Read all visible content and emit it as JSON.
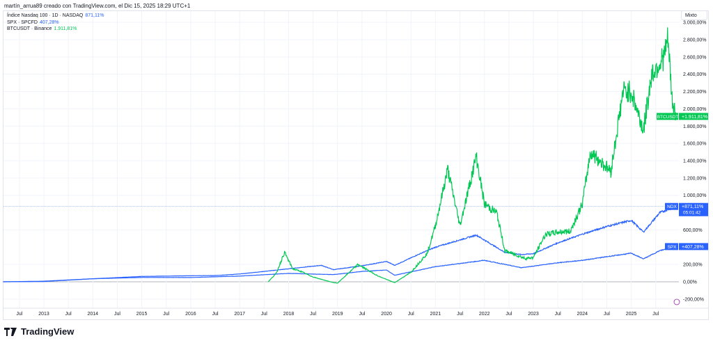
{
  "header": {
    "attribution": "martín_arrua89 creado con TradingView.com, el Dic 15, 2025 18:29 UTC+1"
  },
  "legend": [
    {
      "label": "Índice Nasdaq 100 · 1D · NASDAQ",
      "value": "871,11%",
      "color": "#2962ff"
    },
    {
      "label": "SPX · SPCFD",
      "value": "407,28%",
      "color": "#2962ff"
    },
    {
      "label": "BTCUSDT · Binance",
      "value": "1.911,81%",
      "color": "#00c853"
    }
  ],
  "scale_mode": "Mixto",
  "price_labels": {
    "btc": {
      "tag": "BTCUSDT",
      "value": "+1.911,81%"
    },
    "ndx": {
      "tag": "NDX",
      "value": "+871,11%",
      "countdown": "05:01:42"
    },
    "spx": {
      "tag": "SPX",
      "value": "+407,28%"
    }
  },
  "logo": "TradingView",
  "chart_data": {
    "type": "line",
    "y_unit": "%",
    "ylim": [
      -250,
      3050
    ],
    "y_ticks": [
      "-200,00%",
      "0,00%",
      "200,00%",
      "600,00%",
      "1.000,00%",
      "1.200,00%",
      "1.400,00%",
      "1.600,00%",
      "1.800,00%",
      "2.000,00%",
      "2.200,00%",
      "2.400,00%",
      "2.600,00%",
      "2.800,00%",
      "3.000,00%"
    ],
    "y_tick_values": [
      -200,
      0,
      200,
      600,
      1000,
      1200,
      1400,
      1600,
      1800,
      2000,
      2200,
      2400,
      2600,
      2800,
      3000
    ],
    "x_ticks": [
      "Jul",
      "2013",
      "Jul",
      "2014",
      "Jul",
      "2015",
      "Jul",
      "2016",
      "Jul",
      "2017",
      "Jul",
      "2018",
      "Jul",
      "2019",
      "Jul",
      "2020",
      "Jul",
      "2021",
      "Jul",
      "2022",
      "Jul",
      "2023",
      "Jul",
      "2024",
      "Jul",
      "2025",
      "Jul"
    ],
    "x_range": [
      "2012-03",
      "2025-12"
    ],
    "grid": true,
    "series": [
      {
        "name": "NDX",
        "color": "#2962ff",
        "points": [
          [
            "2012-03",
            0
          ],
          [
            "2013-01",
            3
          ],
          [
            "2014-01",
            35
          ],
          [
            "2015-01",
            62
          ],
          [
            "2016-01",
            70
          ],
          [
            "2016-07",
            72
          ],
          [
            "2017-01",
            90
          ],
          [
            "2018-01",
            150
          ],
          [
            "2018-09",
            190
          ],
          [
            "2018-12",
            140
          ],
          [
            "2019-07",
            185
          ],
          [
            "2020-01",
            235
          ],
          [
            "2020-03",
            190
          ],
          [
            "2020-09",
            320
          ],
          [
            "2021-01",
            400
          ],
          [
            "2021-11",
            540
          ],
          [
            "2022-06",
            340
          ],
          [
            "2022-10",
            315
          ],
          [
            "2023-01",
            325
          ],
          [
            "2023-07",
            450
          ],
          [
            "2024-01",
            550
          ],
          [
            "2024-07",
            640
          ],
          [
            "2025-01",
            710
          ],
          [
            "2025-04",
            575
          ],
          [
            "2025-08",
            800
          ],
          [
            "2025-12",
            871
          ]
        ]
      },
      {
        "name": "SPX",
        "color": "#2962ff",
        "points": [
          [
            "2012-03",
            0
          ],
          [
            "2013-01",
            7
          ],
          [
            "2014-01",
            35
          ],
          [
            "2015-01",
            50
          ],
          [
            "2016-01",
            49
          ],
          [
            "2017-01",
            66
          ],
          [
            "2018-01",
            97
          ],
          [
            "2018-12",
            83
          ],
          [
            "2019-07",
            120
          ],
          [
            "2020-01",
            136
          ],
          [
            "2020-03",
            75
          ],
          [
            "2021-01",
            175
          ],
          [
            "2022-01",
            248
          ],
          [
            "2022-10",
            163
          ],
          [
            "2023-01",
            181
          ],
          [
            "2023-07",
            220
          ],
          [
            "2024-01",
            248
          ],
          [
            "2024-07",
            290
          ],
          [
            "2025-01",
            330
          ],
          [
            "2025-04",
            265
          ],
          [
            "2025-08",
            360
          ],
          [
            "2025-12",
            407
          ]
        ]
      },
      {
        "name": "BTCUSDT",
        "color": "#00c853",
        "points": [
          [
            "2017-08",
            0
          ],
          [
            "2017-10",
            100
          ],
          [
            "2017-12",
            340
          ],
          [
            "2018-02",
            150
          ],
          [
            "2018-04",
            120
          ],
          [
            "2018-07",
            55
          ],
          [
            "2018-12",
            -10
          ],
          [
            "2019-01",
            -15
          ],
          [
            "2019-06",
            200
          ],
          [
            "2019-11",
            65
          ],
          [
            "2020-03",
            -10
          ],
          [
            "2020-07",
            110
          ],
          [
            "2020-11",
            330
          ],
          [
            "2021-01",
            650
          ],
          [
            "2021-04",
            1300
          ],
          [
            "2021-07",
            650
          ],
          [
            "2021-11",
            1450
          ],
          [
            "2022-01",
            900
          ],
          [
            "2022-04",
            800
          ],
          [
            "2022-06",
            360
          ],
          [
            "2022-11",
            270
          ],
          [
            "2023-01",
            280
          ],
          [
            "2023-04",
            550
          ],
          [
            "2023-08",
            580
          ],
          [
            "2023-10",
            580
          ],
          [
            "2024-01",
            900
          ],
          [
            "2024-03",
            1500
          ],
          [
            "2024-08",
            1280
          ],
          [
            "2024-11",
            2200
          ],
          [
            "2025-01",
            2200
          ],
          [
            "2025-04",
            1750
          ],
          [
            "2025-06",
            2400
          ],
          [
            "2025-09",
            2600
          ],
          [
            "2025-10",
            2800
          ],
          [
            "2025-11",
            2100
          ],
          [
            "2025-12",
            1912
          ]
        ]
      }
    ]
  }
}
